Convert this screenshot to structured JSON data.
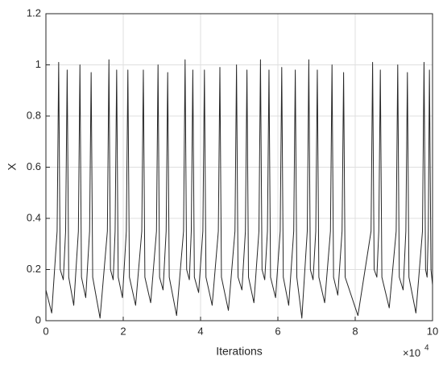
{
  "chart_data": {
    "type": "line",
    "xlabel": "Iterations",
    "ylabel": "X",
    "x_multiplier": "×10",
    "x_multiplier_exponent": 4,
    "xlim": [
      0,
      10
    ],
    "xticks": [
      0,
      2,
      4,
      6,
      8,
      10
    ],
    "ylim": [
      0,
      1.2
    ],
    "yticks": [
      0,
      0.2,
      0.4,
      0.6,
      0.8,
      1,
      1.2
    ],
    "grid": true,
    "x": [
      0,
      0.15,
      0.29,
      0.33,
      0.37,
      0.45,
      0.51,
      0.55,
      0.59,
      0.72,
      0.84,
      0.88,
      0.92,
      1.03,
      1.13,
      1.17,
      1.21,
      1.4,
      1.59,
      1.63,
      1.67,
      1.74,
      1.79,
      1.83,
      1.87,
      1.98,
      2.08,
      2.12,
      2.16,
      2.32,
      2.48,
      2.52,
      2.56,
      2.71,
      2.86,
      2.9,
      2.94,
      3.03,
      3.11,
      3.15,
      3.19,
      3.38,
      3.56,
      3.6,
      3.64,
      3.71,
      3.76,
      3.8,
      3.84,
      3.95,
      4.06,
      4.1,
      4.14,
      4.3,
      4.46,
      4.5,
      4.54,
      4.72,
      4.89,
      4.93,
      4.97,
      5.07,
      5.16,
      5.2,
      5.24,
      5.38,
      5.51,
      5.55,
      5.59,
      5.66,
      5.73,
      5.77,
      5.81,
      5.94,
      6.06,
      6.1,
      6.14,
      6.28,
      6.41,
      6.45,
      6.49,
      6.62,
      6.76,
      6.8,
      6.84,
      6.91,
      6.98,
      7.02,
      7.06,
      7.21,
      7.36,
      7.4,
      7.44,
      7.55,
      7.66,
      7.7,
      7.74,
      8.07,
      8.41,
      8.45,
      8.49,
      8.56,
      8.61,
      8.65,
      8.69,
      8.88,
      9.06,
      9.1,
      9.14,
      9.24,
      9.31,
      9.35,
      9.39,
      9.57,
      9.74,
      9.78,
      9.82,
      9.86,
      9.89,
      9.92,
      9.96,
      10
    ],
    "series": [
      {
        "color": "#262626",
        "values": [
          0.12,
          0.03,
          0.35,
          1.01,
          0.2,
          0.16,
          0.35,
          0.98,
          0.17,
          0.06,
          0.35,
          1.0,
          0.17,
          0.09,
          0.35,
          0.97,
          0.17,
          0.01,
          0.35,
          1.02,
          0.2,
          0.16,
          0.35,
          0.98,
          0.17,
          0.09,
          0.35,
          0.98,
          0.17,
          0.06,
          0.35,
          0.98,
          0.17,
          0.07,
          0.35,
          1.0,
          0.17,
          0.12,
          0.35,
          0.97,
          0.17,
          0.02,
          0.35,
          1.02,
          0.2,
          0.16,
          0.35,
          0.98,
          0.17,
          0.11,
          0.35,
          0.98,
          0.17,
          0.06,
          0.35,
          0.99,
          0.17,
          0.04,
          0.35,
          1.0,
          0.17,
          0.12,
          0.35,
          0.98,
          0.17,
          0.07,
          0.35,
          1.02,
          0.2,
          0.16,
          0.35,
          0.98,
          0.17,
          0.09,
          0.35,
          0.99,
          0.17,
          0.06,
          0.35,
          0.98,
          0.17,
          0.01,
          0.35,
          1.02,
          0.2,
          0.16,
          0.35,
          0.98,
          0.17,
          0.07,
          0.35,
          1.0,
          0.17,
          0.1,
          0.35,
          0.97,
          0.17,
          0.02,
          0.35,
          1.01,
          0.2,
          0.17,
          0.35,
          0.98,
          0.17,
          0.05,
          0.35,
          1.0,
          0.17,
          0.12,
          0.35,
          0.97,
          0.17,
          0.03,
          0.35,
          1.01,
          0.2,
          0.17,
          0.35,
          0.98,
          0.2,
          0.14
        ]
      }
    ]
  }
}
